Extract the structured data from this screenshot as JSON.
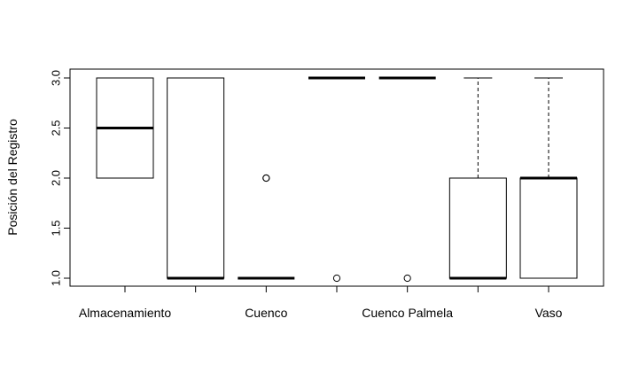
{
  "chart_data": {
    "type": "box",
    "title": "",
    "xlabel": "",
    "ylabel": "Posición del Registro",
    "ylim": [
      0.9,
      3.06
    ],
    "yticks": [
      "1.0",
      "1.5",
      "2.0",
      "2.5",
      "3.0"
    ],
    "categories": [
      "Almacenamiento",
      "",
      "Cuenco",
      "",
      "Cuenco Palmela",
      "",
      "Vaso"
    ],
    "boxes": [
      {
        "q1": 2,
        "median": 2.5,
        "q3": 3,
        "whisker_low": 2,
        "whisker_high": 3,
        "outliers": []
      },
      {
        "q1": 1,
        "median": 1,
        "q3": 3,
        "whisker_low": 1,
        "whisker_high": 3,
        "outliers": []
      },
      {
        "q1": 1,
        "median": 1,
        "q3": 1,
        "whisker_low": 1,
        "whisker_high": 1,
        "outliers": [
          2,
          2
        ]
      },
      {
        "q1": 3,
        "median": 3,
        "q3": 3,
        "whisker_low": 3,
        "whisker_high": 3,
        "outliers": [
          1
        ]
      },
      {
        "q1": 3,
        "median": 3,
        "q3": 3,
        "whisker_low": 3,
        "whisker_high": 3,
        "outliers": [
          1
        ]
      },
      {
        "q1": 1,
        "median": 1,
        "q3": 2,
        "whisker_low": 1,
        "whisker_high": 3,
        "outliers": []
      },
      {
        "q1": 1,
        "median": 2,
        "q3": 2,
        "whisker_low": 1,
        "whisker_high": 3,
        "outliers": []
      }
    ],
    "grid": false,
    "legend": "none"
  }
}
